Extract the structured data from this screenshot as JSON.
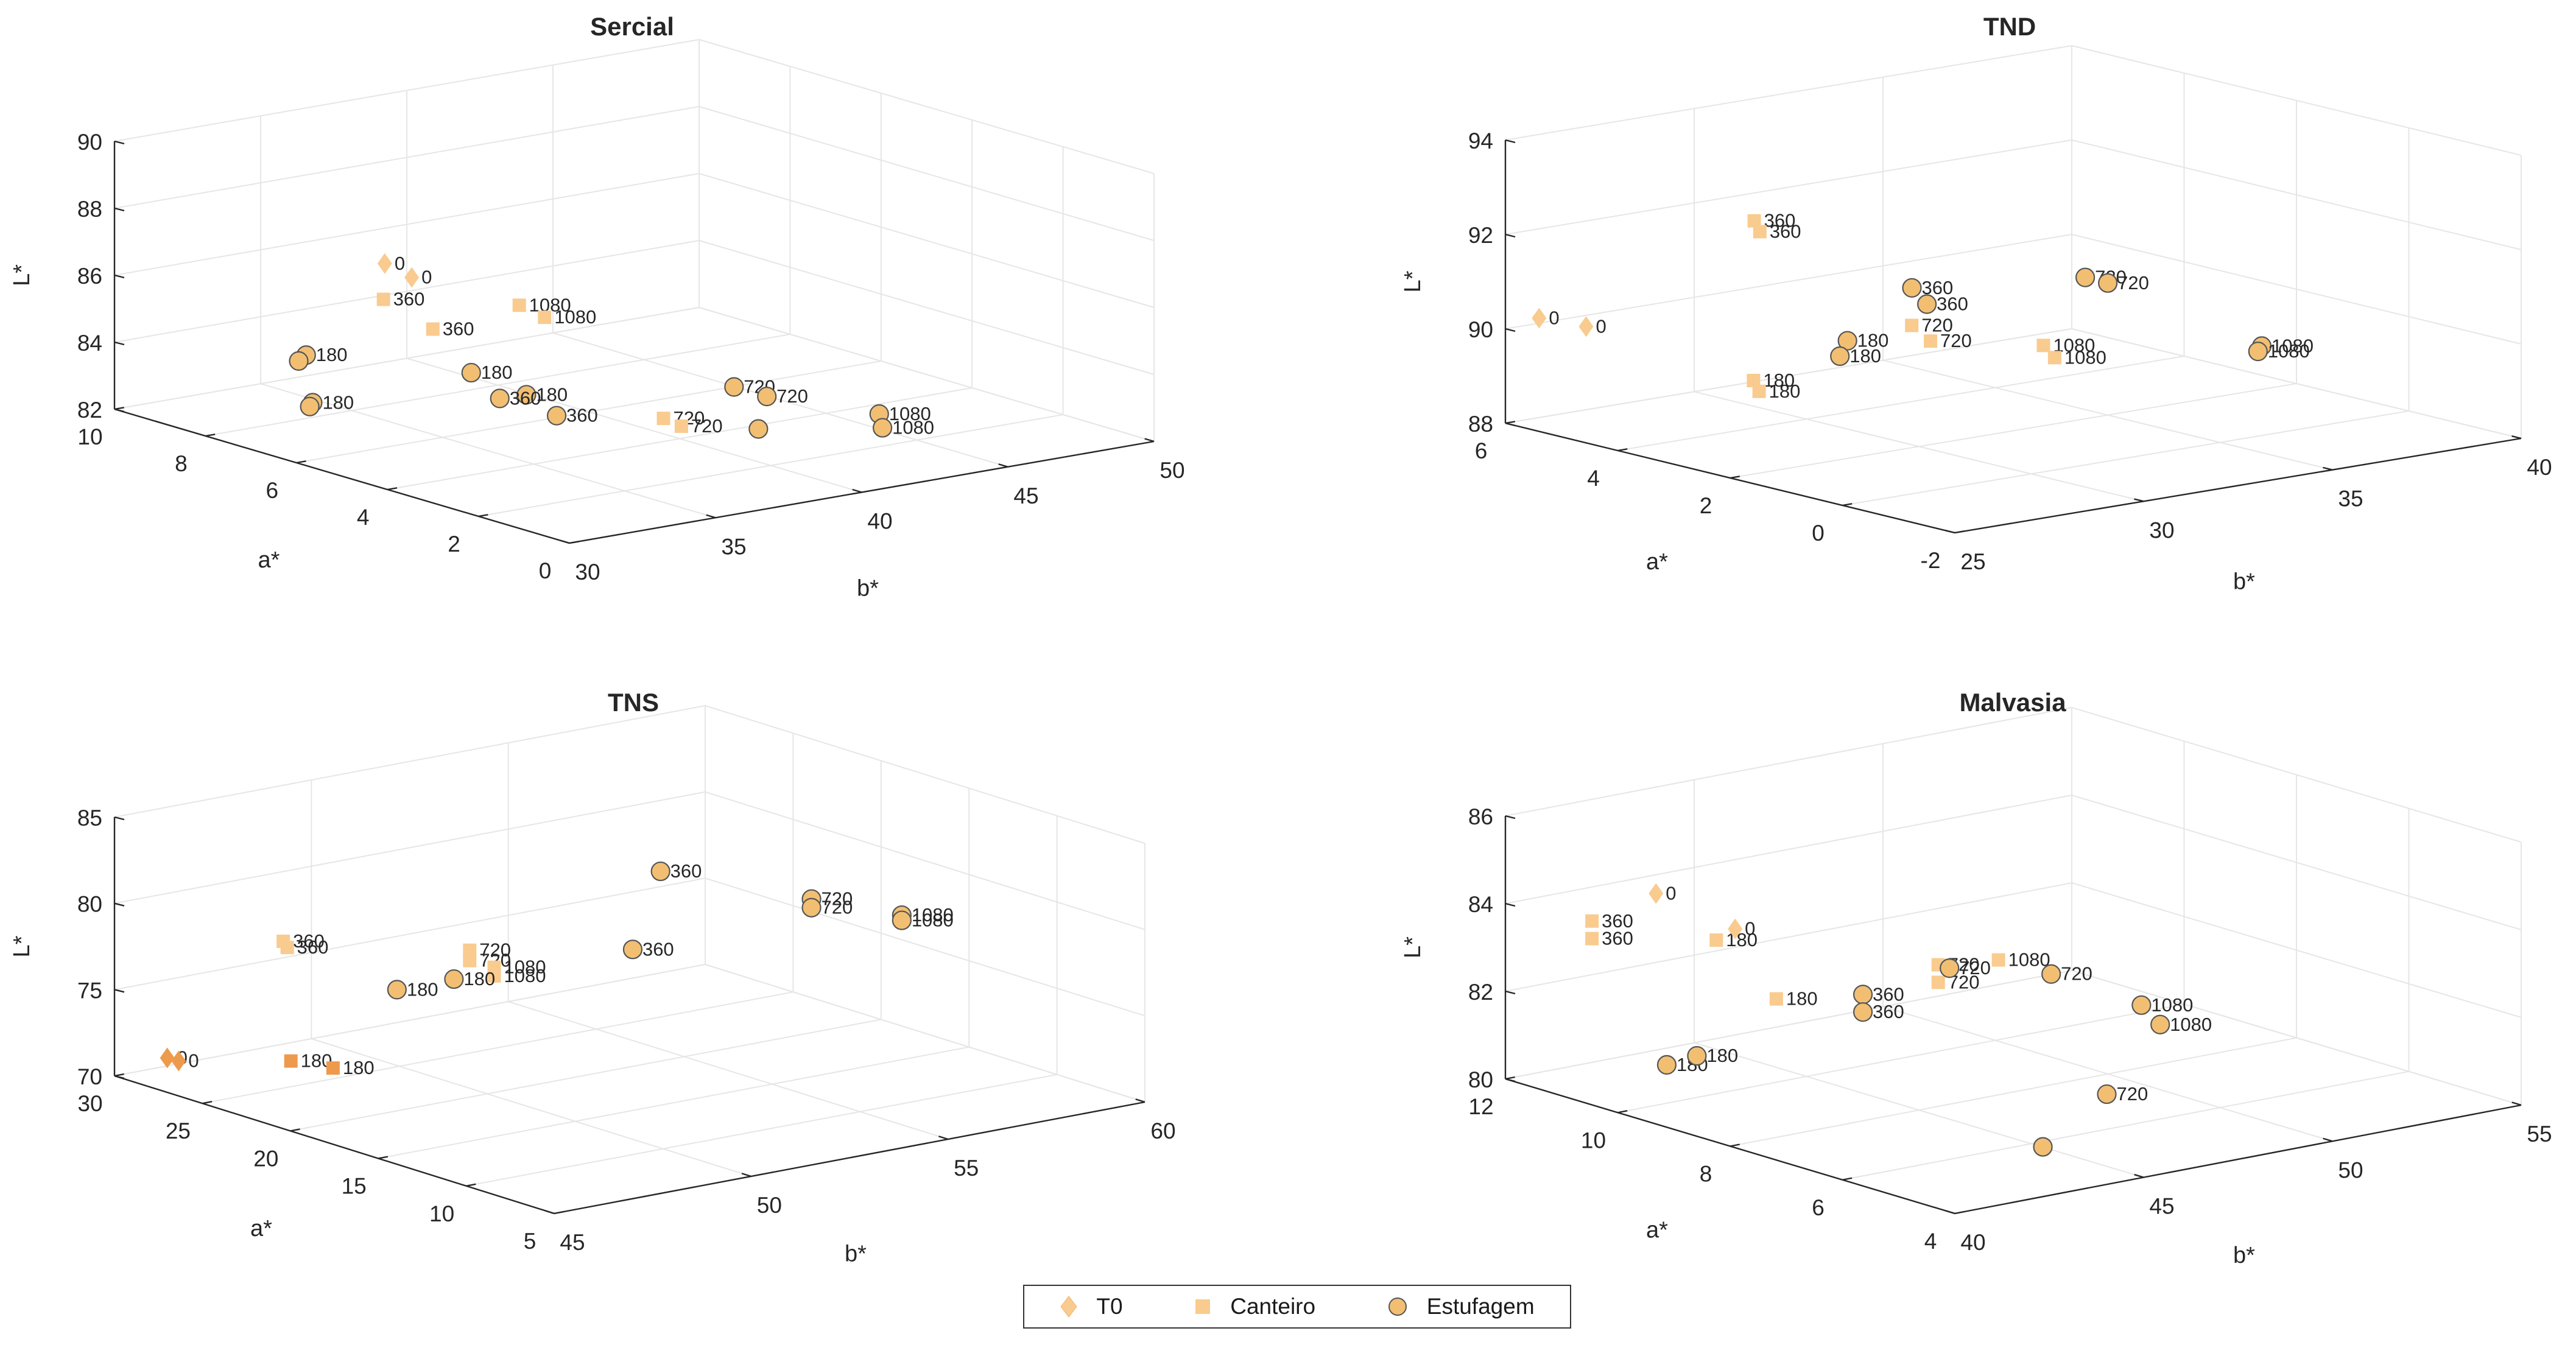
{
  "legend": {
    "items": [
      {
        "label": "T0",
        "marker": "diamond"
      },
      {
        "label": "Canteiro",
        "marker": "square"
      },
      {
        "label": "Estufagem",
        "marker": "circle"
      }
    ]
  },
  "colors": {
    "marker_light": "#F9CB8F",
    "marker_mid": "#F4B870",
    "marker_dark": "#EE9A4D",
    "estufagem_fill": "#F2BF72",
    "estufagem_edge": "#555555",
    "axis": "#262626",
    "grid": "#E6E6E6"
  },
  "chart_data": [
    {
      "type": "scatter3d",
      "title": "Sercial",
      "xlabel": "b*",
      "ylabel": "a*",
      "zlabel": "L*",
      "xlim": [
        30,
        50
      ],
      "ylim": [
        0,
        10
      ],
      "zlim": [
        82,
        90
      ],
      "xticks": [
        "30",
        "35",
        "40",
        "45",
        "50"
      ],
      "yticks": [
        "0",
        "2",
        "4",
        "6",
        "8",
        "10"
      ],
      "zticks": [
        "82",
        "84",
        "86",
        "88",
        "90"
      ],
      "series": [
        {
          "name": "T0",
          "points": [
            [
              35.2,
              7.4,
              86.6,
              "0"
            ],
            [
              35.5,
              7.0,
              86.3,
              "0"
            ]
          ]
        },
        {
          "name": "Canteiro",
          "points": [
            [
              35.0,
              7.3,
              85.6,
              "360"
            ],
            [
              37.0,
              5.6,
              85.8,
              "1080"
            ],
            [
              37.4,
              5.3,
              85.5,
              "1080"
            ],
            [
              35.6,
              6.6,
              84.9,
              "360"
            ],
            [
              38.2,
              3.2,
              83.2,
              "720"
            ],
            [
              38.5,
              3.0,
              83.0,
              "720"
            ]
          ]
        },
        {
          "name": "Estufagem",
          "points": [
            [
              32.2,
              7.2,
              84.4,
              "180"
            ],
            [
              32.1,
              7.3,
              84.2,
              ""
            ],
            [
              31.8,
              6.8,
              83.2,
              "180"
            ],
            [
              31.7,
              6.8,
              83.1,
              ""
            ],
            [
              35.2,
              5.5,
              84.1,
              "180"
            ],
            [
              36.0,
              4.8,
              83.6,
              "180"
            ],
            [
              35.4,
              5.0,
              83.5,
              "360"
            ],
            [
              36.1,
              4.2,
              83.2,
              "360"
            ],
            [
              40.3,
              3.0,
              83.9,
              "720"
            ],
            [
              40.8,
              2.6,
              83.7,
              "720"
            ],
            [
              40.2,
              2.4,
              82.9,
              ""
            ],
            [
              43.4,
              1.8,
              83.1,
              "1080"
            ],
            [
              43.2,
              1.6,
              82.8,
              "1080"
            ]
          ]
        }
      ]
    },
    {
      "type": "scatter3d",
      "title": "TND",
      "xlabel": "b*",
      "ylabel": "a*",
      "zlabel": "L*",
      "xlim": [
        25,
        40
      ],
      "ylim": [
        -2,
        6
      ],
      "zlim": [
        88,
        94
      ],
      "xticks": [
        "25",
        "30",
        "35",
        "40"
      ],
      "yticks": [
        "-2",
        "0",
        "2",
        "4",
        "6"
      ],
      "zticks": [
        "88",
        "90",
        "92",
        "94"
      ],
      "series": [
        {
          "name": "T0",
          "points": [
            [
              25.0,
              5.4,
              90.4,
              "0"
            ],
            [
              25.5,
              4.9,
              90.3,
              "0"
            ]
          ]
        },
        {
          "name": "Canteiro",
          "points": [
            [
              28.0,
              3.6,
              89.2,
              "180"
            ],
            [
              28.0,
              3.5,
              89.0,
              "180"
            ],
            [
              30.4,
              5.2,
              91.8,
              "360"
            ],
            [
              30.4,
              5.1,
              91.6,
              "360"
            ],
            [
              31.0,
              2.8,
              90.2,
              "720"
            ],
            [
              31.2,
              2.6,
              89.9,
              "720"
            ],
            [
              33.0,
              1.8,
              89.8,
              "1080"
            ],
            [
              33.0,
              1.6,
              89.6,
              "1080"
            ]
          ]
        },
        {
          "name": "Estufagem",
          "points": [
            [
              29.0,
              2.6,
              90.2,
              "180"
            ],
            [
              28.8,
              2.6,
              89.9,
              "180"
            ],
            [
              31.6,
              3.2,
              90.8,
              "360"
            ],
            [
              31.7,
              3.0,
              90.5,
              "360"
            ],
            [
              35.0,
              2.4,
              90.8,
              "720"
            ],
            [
              35.3,
              2.2,
              90.7,
              "720"
            ],
            [
              36.7,
              0.4,
              89.7,
              "1080"
            ],
            [
              36.6,
              0.4,
              89.6,
              "1080"
            ]
          ]
        }
      ]
    },
    {
      "type": "scatter3d",
      "title": "TNS",
      "xlabel": "b*",
      "ylabel": "a*",
      "zlabel": "L*",
      "xlim": [
        45,
        60
      ],
      "ylim": [
        5,
        30
      ],
      "zlim": [
        70,
        85
      ],
      "xticks": [
        "45",
        "50",
        "55",
        "60"
      ],
      "yticks": [
        "5",
        "10",
        "15",
        "20",
        "25",
        "30"
      ],
      "zticks": [
        "70",
        "75",
        "80",
        "85"
      ],
      "series": [
        {
          "name": "T0",
          "points": [
            [
              45.0,
              27.0,
              72.0,
              "0"
            ],
            [
              45.2,
              26.8,
              71.8,
              "0"
            ]
          ]
        },
        {
          "name": "Canteiro",
          "points": [
            [
              46.8,
              24.0,
              72.0,
              "180"
            ],
            [
              47.2,
              22.5,
              71.9,
              "180"
            ],
            [
              47.5,
              26.0,
              78.0,
              "360"
            ],
            [
              47.6,
              26.0,
              77.6,
              "360"
            ],
            [
              50.0,
              21.0,
              78.0,
              "720"
            ],
            [
              50.0,
              21.0,
              77.4,
              "720"
            ],
            [
              50.4,
              20.5,
              77.0,
              "1080"
            ],
            [
              50.4,
              20.5,
              76.5,
              "1080"
            ]
          ]
        },
        {
          "name": "Estufagem",
          "points": [
            [
              48.6,
              22.0,
              76.0,
              "180"
            ],
            [
              49.6,
              21.0,
              76.5,
              "180"
            ],
            [
              52.8,
              18.0,
              77.8,
              "360"
            ],
            [
              54.4,
              20.0,
              81.0,
              "360"
            ],
            [
              56.0,
              15.0,
              80.3,
              "720"
            ],
            [
              56.0,
              15.0,
              79.8,
              "720"
            ],
            [
              57.4,
              13.0,
              79.4,
              "1080"
            ],
            [
              57.4,
              13.0,
              79.1,
              "1080"
            ]
          ]
        }
      ]
    },
    {
      "type": "scatter3d",
      "title": "Malvasia",
      "xlabel": "b*",
      "ylabel": "a*",
      "zlabel": "L*",
      "xlim": [
        40,
        55
      ],
      "ylim": [
        4,
        12
      ],
      "zlim": [
        80,
        86
      ],
      "xticks": [
        "40",
        "45",
        "50",
        "55"
      ],
      "yticks": [
        "4",
        "6",
        "8",
        "10",
        "12"
      ],
      "zticks": [
        "80",
        "82",
        "84",
        "86"
      ],
      "series": [
        {
          "name": "T0",
          "points": [
            [
              42.5,
              11.0,
              84.2,
              "0"
            ],
            [
              44.0,
              10.6,
              83.3,
              "0"
            ]
          ]
        },
        {
          "name": "Canteiro",
          "points": [
            [
              41.4,
              11.4,
              83.6,
              "360"
            ],
            [
              41.4,
              11.4,
              83.2,
              "360"
            ],
            [
              43.8,
              10.8,
              83.0,
              "180"
            ],
            [
              44.2,
              10.0,
              81.9,
              "180"
            ],
            [
              47.0,
              9.0,
              82.6,
              "720"
            ],
            [
              47.0,
              9.0,
              82.2,
              "720"
            ],
            [
              48.0,
              8.6,
              82.7,
              "1080"
            ]
          ]
        },
        {
          "name": "Estufagem",
          "points": [
            [
              41.0,
              9.8,
              81.0,
              "180"
            ],
            [
              41.5,
              9.6,
              81.2,
              "180"
            ],
            [
              45.6,
              9.4,
              82.0,
              "360"
            ],
            [
              45.6,
              9.4,
              81.6,
              "360"
            ],
            [
              47.0,
              8.8,
              82.6,
              "720"
            ],
            [
              48.8,
              8.2,
              82.4,
              "720"
            ],
            [
              50.0,
              7.4,
              81.8,
              "1080"
            ],
            [
              50.2,
              7.2,
              81.4,
              "1080"
            ],
            [
              47.0,
              6.0,
              80.8,
              "720"
            ],
            [
              46.2,
              6.6,
              79.5,
              ""
            ]
          ]
        }
      ]
    }
  ]
}
